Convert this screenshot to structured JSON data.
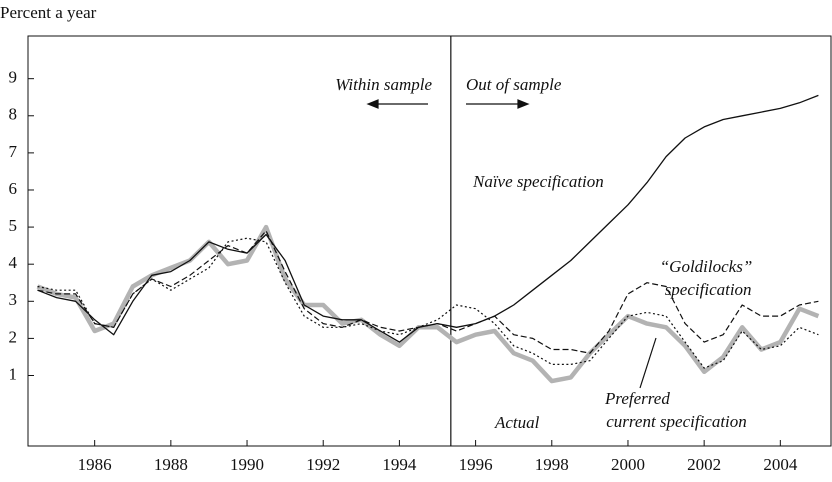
{
  "chart_data": {
    "type": "line",
    "y_label": "Percent a year",
    "annotations": [
      "Within sample",
      "Out of sample"
    ],
    "divider_x": 1995.35,
    "xlim": [
      1984.25,
      2005.33
    ],
    "ylim": [
      -0.9,
      10.15
    ],
    "xticks": [
      1986,
      1988,
      1990,
      1992,
      1994,
      1996,
      1998,
      2000,
      2002,
      2004
    ],
    "yticks": [
      1,
      2,
      3,
      4,
      5,
      6,
      7,
      8,
      9
    ],
    "x": [
      1984.5,
      1985,
      1985.5,
      1986,
      1986.5,
      1987,
      1987.5,
      1988,
      1988.5,
      1989,
      1989.5,
      1990,
      1990.5,
      1991,
      1991.5,
      1992,
      1992.5,
      1993,
      1993.5,
      1994,
      1994.5,
      1995,
      1995.5,
      1996,
      1996.5,
      1997,
      1997.5,
      1998,
      1998.5,
      1999,
      1999.5,
      2000,
      2000.5,
      2001,
      2001.5,
      2002,
      2002.5,
      2003,
      2003.5,
      2004,
      2004.5,
      2005
    ],
    "series": [
      {
        "name": "Actual",
        "color": "#b3b3b3",
        "width": 4.5,
        "style": "solid",
        "values": [
          3.4,
          3.2,
          3.1,
          2.2,
          2.4,
          3.4,
          3.7,
          3.9,
          4.1,
          4.6,
          4.0,
          4.1,
          5.0,
          3.6,
          2.9,
          2.9,
          2.4,
          2.5,
          2.1,
          1.8,
          2.3,
          2.3,
          1.9,
          2.1,
          2.2,
          1.6,
          1.4,
          0.85,
          0.95,
          1.6,
          2.1,
          2.6,
          2.4,
          2.3,
          1.8,
          1.1,
          1.5,
          2.3,
          1.7,
          1.9,
          2.8,
          2.6
        ]
      },
      {
        "name": "Naïve specification",
        "color": "#111111",
        "width": 1.3,
        "style": "solid",
        "values": [
          3.3,
          3.1,
          3.0,
          2.5,
          2.1,
          3.0,
          3.7,
          3.8,
          4.1,
          4.6,
          4.4,
          4.3,
          4.8,
          4.1,
          2.9,
          2.6,
          2.5,
          2.5,
          2.2,
          1.9,
          2.3,
          2.4,
          2.3,
          2.4,
          2.6,
          2.9,
          3.3,
          3.7,
          4.1,
          4.6,
          5.1,
          5.6,
          6.2,
          6.9,
          7.4,
          7.7,
          7.9,
          8.0,
          8.1,
          8.2,
          8.35,
          8.55
        ]
      },
      {
        "name": "“Goldilocks” specification",
        "color": "#111111",
        "width": 1.2,
        "style": "dashed",
        "values": [
          3.3,
          3.2,
          3.2,
          2.4,
          2.3,
          3.2,
          3.6,
          3.4,
          3.7,
          4.1,
          4.5,
          4.3,
          4.9,
          3.8,
          2.8,
          2.4,
          2.3,
          2.5,
          2.3,
          2.2,
          2.3,
          2.4,
          2.2,
          2.4,
          2.6,
          2.1,
          2.0,
          1.7,
          1.7,
          1.6,
          2.2,
          3.2,
          3.5,
          3.4,
          2.4,
          1.9,
          2.1,
          2.9,
          2.6,
          2.6,
          2.9,
          3.0
        ]
      },
      {
        "name": "Preferred current specification",
        "color": "#111111",
        "width": 1.2,
        "style": "dotted",
        "values": [
          3.4,
          3.3,
          3.3,
          2.4,
          2.3,
          3.2,
          3.6,
          3.3,
          3.6,
          3.9,
          4.6,
          4.7,
          4.6,
          3.5,
          2.6,
          2.3,
          2.3,
          2.4,
          2.2,
          2.1,
          2.3,
          2.5,
          2.9,
          2.8,
          2.4,
          1.8,
          1.6,
          1.3,
          1.3,
          1.4,
          2.0,
          2.6,
          2.7,
          2.6,
          1.9,
          1.2,
          1.4,
          2.2,
          1.7,
          1.8,
          2.3,
          2.1
        ]
      }
    ]
  }
}
